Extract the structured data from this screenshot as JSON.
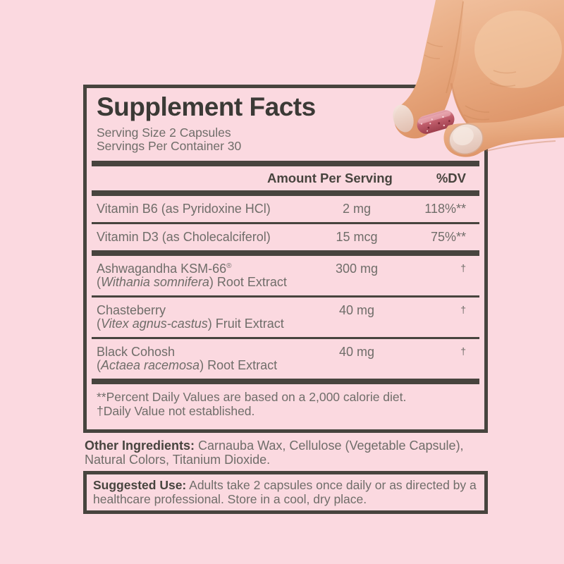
{
  "colors": {
    "background": "#FBD9E0",
    "ink": "#47443E",
    "title": "#3B3A36",
    "body_text": "#6F6D69",
    "skin": "#E7A87E",
    "skin_shadow": "#CE8A5C",
    "nail": "#EDD9D1",
    "capsule_light": "#E8A9B2",
    "capsule_dark": "#9E3F4D"
  },
  "label": {
    "title": "Supplement Facts",
    "serving_size": "Serving Size 2 Capsules",
    "servings_per_container": "Servings Per Container 30",
    "header": {
      "amount": "Amount Per Serving",
      "dv": "%DV"
    },
    "rows": [
      {
        "name": "Vitamin B6 (as Pyridoxine HCl)",
        "reg_mark": "",
        "line2_prefix": "",
        "latin": "",
        "line2_suffix": "",
        "amount": "2 mg",
        "dv": "118%**",
        "sep_after": "thin"
      },
      {
        "name": "Vitamin D3 (as Cholecalciferol)",
        "reg_mark": "",
        "line2_prefix": "",
        "latin": "",
        "line2_suffix": "",
        "amount": "15 mcg",
        "dv": "75%**",
        "sep_after": "thick"
      },
      {
        "name": "Ashwagandha KSM-66",
        "reg_mark": "®",
        "line2_prefix": "(",
        "latin": "Withania somnifera",
        "line2_suffix": ") Root Extract",
        "amount": "300 mg",
        "dv": "†",
        "sep_after": "thin"
      },
      {
        "name": "Chasteberry",
        "reg_mark": "",
        "line2_prefix": "(",
        "latin": "Vitex agnus-castus",
        "line2_suffix": ") Fruit Extract",
        "amount": "40 mg",
        "dv": "†",
        "sep_after": "thin"
      },
      {
        "name": "Black Cohosh",
        "reg_mark": "",
        "line2_prefix": "(",
        "latin": "Actaea racemosa",
        "line2_suffix": ") Root Extract",
        "amount": "40 mg",
        "dv": "†",
        "sep_after": "none"
      }
    ],
    "footnotes": [
      "**Percent Daily Values are based on a 2,000 calorie diet.",
      "†Daily Value not established."
    ]
  },
  "other_ingredients": {
    "label": "Other Ingredients:",
    "text": " Carnauba Wax, Cellulose (Vegetable Capsule), Natural Colors, Titanium Dioxide."
  },
  "suggested_use": {
    "label": "Suggested Use:",
    "text": " Adults take 2 capsules once daily or as directed by a healthcare professional. Store in a cool, dry place."
  },
  "photo": {
    "graphic": "hand-holding-capsule"
  }
}
